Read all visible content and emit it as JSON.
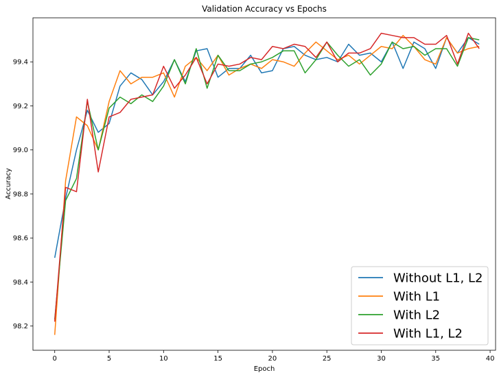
{
  "chart_data": {
    "type": "line",
    "title": "Validation Accuracy vs Epochs",
    "xlabel": "Epoch",
    "ylabel": "Accuracy",
    "xlim": [
      -2,
      40.5
    ],
    "ylim": [
      98.09,
      99.6
    ],
    "xticks": [
      0,
      5,
      10,
      15,
      20,
      25,
      30,
      35,
      40
    ],
    "yticks": [
      98.2,
      98.4,
      98.6,
      98.8,
      99.0,
      99.2,
      99.4
    ],
    "ytick_labels": [
      "98.2",
      "98.4",
      "98.6",
      "98.8",
      "99.0",
      "99.2",
      "99.4"
    ],
    "grid": false,
    "legend_position": "bottom-right",
    "x": [
      0,
      1,
      2,
      3,
      4,
      5,
      6,
      7,
      8,
      9,
      10,
      11,
      12,
      13,
      14,
      15,
      16,
      17,
      18,
      19,
      20,
      21,
      22,
      23,
      24,
      25,
      26,
      27,
      28,
      29,
      30,
      31,
      32,
      33,
      34,
      35,
      36,
      37,
      38,
      39
    ],
    "series": [
      {
        "name": "Without L1, L2",
        "color": "#1f77b4",
        "values": [
          98.51,
          98.78,
          99.0,
          99.18,
          99.08,
          99.12,
          99.29,
          99.35,
          99.32,
          99.25,
          99.31,
          99.41,
          99.31,
          99.45,
          99.46,
          99.33,
          99.37,
          99.37,
          99.43,
          99.35,
          99.36,
          99.46,
          99.47,
          99.43,
          99.41,
          99.42,
          99.4,
          99.48,
          99.43,
          99.44,
          99.4,
          99.49,
          99.37,
          99.49,
          99.46,
          99.37,
          99.51,
          99.44,
          99.51,
          99.48
        ]
      },
      {
        "name": "With L1",
        "color": "#ff7f0e",
        "values": [
          98.16,
          98.86,
          99.15,
          99.11,
          99.0,
          99.22,
          99.36,
          99.3,
          99.33,
          99.33,
          99.35,
          99.24,
          99.38,
          99.42,
          99.36,
          99.43,
          99.34,
          99.37,
          99.39,
          99.37,
          99.41,
          99.4,
          99.38,
          99.44,
          99.49,
          99.45,
          99.41,
          99.43,
          99.39,
          99.43,
          99.47,
          99.46,
          99.52,
          99.47,
          99.41,
          99.39,
          99.51,
          99.44,
          99.46,
          99.47
        ]
      },
      {
        "name": "With L2",
        "color": "#2ca02c",
        "values": [
          98.23,
          98.77,
          98.87,
          99.22,
          99.0,
          99.19,
          99.24,
          99.21,
          99.25,
          99.22,
          99.29,
          99.41,
          99.3,
          99.46,
          99.28,
          99.43,
          99.36,
          99.36,
          99.39,
          99.4,
          99.42,
          99.45,
          99.45,
          99.35,
          99.41,
          99.49,
          99.43,
          99.38,
          99.41,
          99.34,
          99.39,
          99.49,
          99.46,
          99.47,
          99.43,
          99.46,
          99.46,
          99.38,
          99.51,
          99.5
        ]
      },
      {
        "name": "With L1, L2",
        "color": "#d62728",
        "values": [
          98.22,
          98.83,
          98.81,
          99.23,
          98.9,
          99.15,
          99.17,
          99.23,
          99.24,
          99.25,
          99.38,
          99.28,
          99.34,
          99.42,
          99.3,
          99.39,
          99.38,
          99.39,
          99.42,
          99.41,
          99.47,
          99.46,
          99.48,
          99.47,
          99.42,
          99.49,
          99.4,
          99.44,
          99.44,
          99.46,
          99.53,
          99.52,
          99.51,
          99.51,
          99.48,
          99.48,
          99.52,
          99.39,
          99.53,
          99.46
        ]
      }
    ]
  }
}
